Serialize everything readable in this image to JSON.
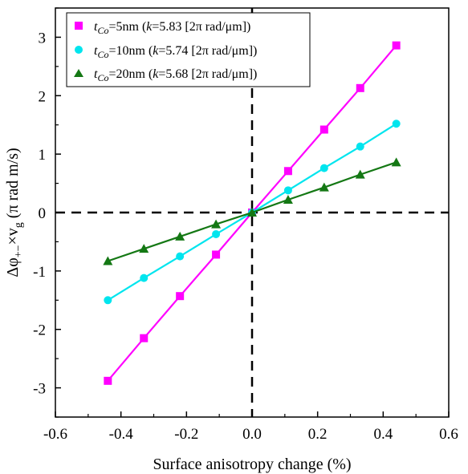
{
  "chart_data": {
    "type": "line",
    "xlabel": "Surface anisotropy change (%)",
    "ylabel_parts": {
      "delta": "Δφ",
      "sub_plus_minus": "+−",
      "times_v": "×v",
      "sub_g": "g",
      "units": " (π rad m/s)"
    },
    "xlim": [
      -0.6,
      0.6
    ],
    "ylim": [
      -3.5,
      3.5
    ],
    "xticks": [
      "-0.6",
      "-0.4",
      "-0.2",
      "0.0",
      "0.2",
      "0.4",
      "0.6"
    ],
    "yticks": [
      "-3",
      "-2",
      "-1",
      "0",
      "1",
      "2",
      "3"
    ],
    "xtick_values": [
      -0.6,
      -0.4,
      -0.2,
      0.0,
      0.2,
      0.4,
      0.6
    ],
    "ytick_values": [
      -3,
      -2,
      -1,
      0,
      1,
      2,
      3
    ],
    "reference_lines": {
      "x": 0,
      "y": 0,
      "style": "dashed"
    },
    "legend_position": "top-left",
    "series": [
      {
        "name": "tCo=5nm (k=5.83 [2π rad/μm])",
        "legend": {
          "t": "t",
          "sub": "Co",
          "mid": "=5nm (",
          "k": "k",
          "rest": "=5.83 [2π rad/μm])"
        },
        "color": "#ff00ff",
        "marker": "square",
        "x": [
          -0.44,
          -0.33,
          -0.22,
          -0.11,
          0.0,
          0.11,
          0.22,
          0.33,
          0.44
        ],
        "y": [
          -2.88,
          -2.15,
          -1.43,
          -0.72,
          0.0,
          0.71,
          1.42,
          2.13,
          2.86
        ]
      },
      {
        "name": "tCo=10nm (k=5.74 [2π rad/μm])",
        "legend": {
          "t": "t",
          "sub": "Co",
          "mid": "=10nm (",
          "k": "k",
          "rest": "=5.74 [2π rad/μm])"
        },
        "color": "#00e5ee",
        "marker": "circle",
        "x": [
          -0.44,
          -0.33,
          -0.22,
          -0.11,
          0.0,
          0.11,
          0.22,
          0.33,
          0.44
        ],
        "y": [
          -1.5,
          -1.12,
          -0.75,
          -0.37,
          0.0,
          0.38,
          0.76,
          1.13,
          1.52
        ]
      },
      {
        "name": "tCo=20nm (k=5.68 [2π rad/μm])",
        "legend": {
          "t": "t",
          "sub": "Co",
          "mid": "=20nm (",
          "k": "k",
          "rest": "=5.68 [2π rad/μm])"
        },
        "color": "#147814",
        "marker": "triangle",
        "x": [
          -0.44,
          -0.33,
          -0.22,
          -0.11,
          0.0,
          0.11,
          0.22,
          0.33,
          0.44
        ],
        "y": [
          -0.83,
          -0.62,
          -0.41,
          -0.2,
          0.0,
          0.22,
          0.43,
          0.65,
          0.86
        ]
      }
    ]
  }
}
